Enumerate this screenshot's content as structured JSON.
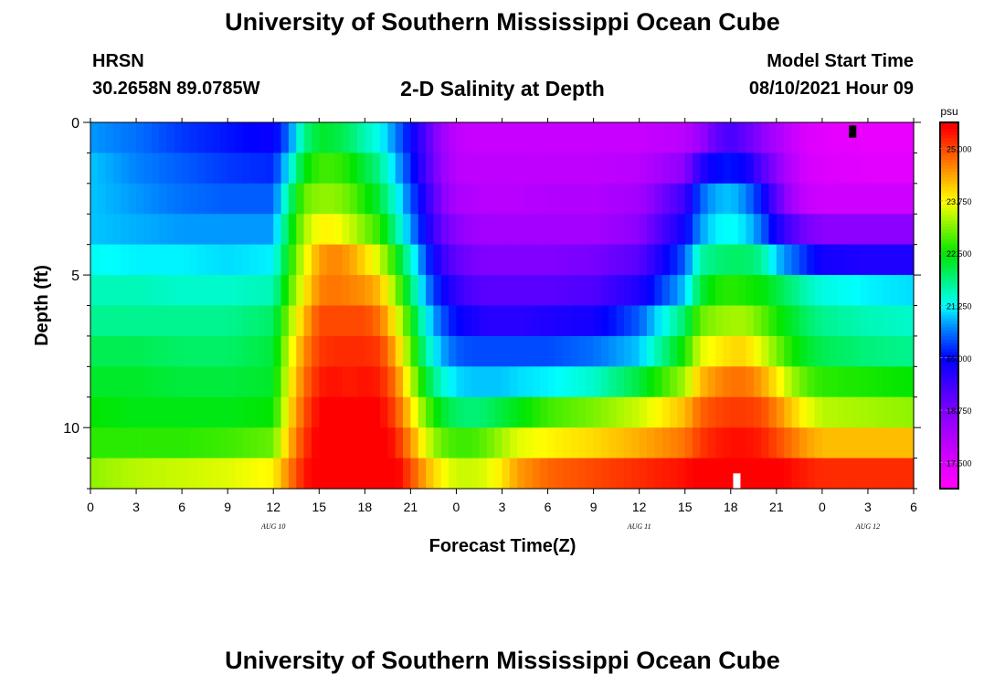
{
  "header": {
    "title": "University of Southern Mississippi Ocean Cube",
    "station": "HRSN",
    "coords": "30.2658N  89.0785W",
    "plot_title": "2-D Salinity at Depth",
    "model_label": "Model Start Time",
    "model_time": "08/10/2021 Hour 09"
  },
  "footer": {
    "title": "University of Southern Mississippi Ocean Cube"
  },
  "chart_data": {
    "type": "heatmap",
    "title": "2-D Salinity at Depth",
    "xlabel": "Forecast Time(Z)",
    "ylabel": "Depth (ft)",
    "xlim": [
      0,
      54
    ],
    "ylim": [
      0,
      12
    ],
    "y_ticks": [
      0,
      5,
      10
    ],
    "x_tick_labels": [
      "0",
      "3",
      "6",
      "9",
      "12",
      "15",
      "18",
      "21",
      "0",
      "3",
      "6",
      "9",
      "12",
      "15",
      "18",
      "21",
      "0",
      "3",
      "6"
    ],
    "date_labels": [
      {
        "hour": 12,
        "label": "AUG 10"
      },
      {
        "hour": 36,
        "label": "AUG 11"
      },
      {
        "hour": 51,
        "label": "AUG 12"
      }
    ],
    "depth_bins_ft": [
      0.5,
      1.5,
      2.5,
      3.5,
      4.5,
      5.5,
      6.5,
      7.5,
      8.5,
      9.5,
      10.5,
      11.5
    ],
    "profile_hours": [
      0,
      3,
      6,
      9,
      12,
      13,
      14,
      15,
      16,
      17,
      18,
      19,
      20,
      21,
      22,
      23,
      24,
      25,
      26,
      27,
      28,
      30,
      33,
      36,
      39,
      40,
      41,
      42,
      43,
      44,
      45,
      46,
      47,
      48,
      51,
      54
    ],
    "salinity_psu": [
      [
        20.8,
        20.6,
        20.3,
        20.1,
        19.9,
        20.6,
        21.8,
        22.3,
        22.2,
        22.0,
        21.6,
        21.3,
        20.7,
        20.0,
        19.2,
        18.4,
        17.9,
        17.8,
        17.8,
        17.8,
        17.8,
        17.8,
        17.8,
        17.8,
        18.0,
        18.4,
        19.0,
        19.3,
        19.0,
        18.6,
        18.2,
        17.8,
        17.5,
        17.4,
        17.3,
        17.3
      ],
      [
        21.0,
        20.7,
        20.5,
        20.3,
        20.2,
        21.2,
        22.4,
        22.8,
        22.8,
        22.6,
        22.2,
        21.8,
        21.0,
        20.2,
        19.3,
        18.5,
        18.0,
        17.9,
        17.9,
        17.9,
        17.9,
        17.9,
        17.9,
        18.0,
        18.6,
        19.6,
        20.0,
        20.1,
        19.9,
        19.2,
        18.6,
        18.0,
        17.6,
        17.5,
        17.4,
        17.4
      ],
      [
        21.0,
        20.8,
        20.6,
        20.5,
        20.5,
        21.8,
        23.0,
        23.2,
        23.2,
        23.0,
        22.6,
        22.2,
        21.4,
        20.5,
        19.6,
        18.7,
        18.2,
        18.1,
        18.0,
        18.0,
        18.0,
        18.1,
        18.1,
        18.3,
        19.4,
        20.5,
        20.9,
        21.0,
        20.7,
        20.1,
        19.1,
        18.3,
        17.8,
        17.7,
        17.7,
        17.7
      ],
      [
        21.0,
        20.9,
        20.8,
        20.8,
        20.8,
        22.2,
        23.3,
        23.8,
        23.8,
        23.5,
        23.1,
        22.7,
        21.8,
        20.8,
        19.9,
        19.0,
        18.6,
        18.4,
        18.3,
        18.3,
        18.3,
        18.3,
        18.3,
        18.6,
        19.9,
        20.8,
        21.2,
        21.3,
        21.1,
        20.6,
        19.8,
        19.2,
        18.8,
        18.6,
        18.6,
        18.6
      ],
      [
        21.3,
        21.2,
        21.2,
        21.1,
        21.2,
        22.5,
        23.6,
        24.4,
        24.6,
        24.4,
        24.0,
        23.5,
        22.6,
        21.5,
        20.4,
        19.5,
        19.0,
        18.8,
        18.7,
        18.7,
        18.7,
        18.7,
        18.8,
        19.1,
        20.5,
        21.7,
        21.9,
        22.0,
        22.0,
        21.8,
        21.0,
        20.6,
        20.2,
        19.8,
        19.7,
        19.7
      ],
      [
        21.6,
        21.6,
        21.5,
        21.5,
        21.6,
        22.8,
        23.8,
        24.6,
        24.7,
        24.6,
        24.5,
        24.2,
        23.2,
        22.0,
        20.8,
        20.0,
        19.5,
        19.2,
        19.1,
        19.1,
        19.1,
        19.1,
        19.2,
        19.7,
        21.0,
        22.2,
        22.6,
        22.7,
        22.6,
        22.5,
        22.2,
        21.9,
        21.6,
        21.4,
        21.2,
        21.1
      ],
      [
        21.8,
        21.8,
        21.8,
        21.8,
        22.0,
        23.2,
        24.2,
        25.0,
        25.0,
        25.0,
        25.0,
        24.7,
        23.8,
        22.6,
        21.3,
        20.5,
        20.0,
        19.8,
        19.6,
        19.6,
        19.6,
        19.7,
        19.8,
        20.5,
        22.0,
        23.0,
        23.2,
        23.3,
        23.3,
        23.0,
        22.6,
        22.3,
        22.0,
        21.8,
        21.6,
        21.5
      ],
      [
        22.1,
        22.1,
        22.0,
        22.0,
        22.2,
        23.5,
        24.5,
        25.1,
        25.2,
        25.2,
        25.2,
        25.1,
        24.3,
        23.0,
        21.7,
        20.9,
        20.5,
        20.4,
        20.4,
        20.4,
        20.4,
        20.4,
        20.6,
        21.0,
        22.6,
        23.6,
        23.8,
        24.0,
        24.0,
        23.6,
        23.1,
        22.6,
        22.3,
        22.1,
        21.9,
        21.8
      ],
      [
        22.3,
        22.3,
        22.2,
        22.2,
        22.3,
        23.7,
        24.7,
        25.3,
        25.4,
        25.3,
        25.4,
        25.3,
        24.7,
        23.5,
        22.3,
        21.5,
        21.1,
        21.0,
        21.0,
        21.0,
        21.1,
        21.2,
        21.5,
        22.2,
        23.3,
        24.2,
        24.5,
        24.7,
        24.7,
        24.4,
        23.9,
        23.3,
        22.9,
        22.7,
        22.6,
        22.5
      ],
      [
        22.5,
        22.4,
        22.4,
        22.4,
        22.5,
        23.9,
        24.9,
        25.5,
        25.5,
        25.5,
        25.5,
        25.5,
        25.0,
        24.0,
        23.0,
        22.3,
        22.0,
        21.9,
        22.0,
        22.2,
        22.4,
        22.8,
        23.1,
        23.5,
        24.2,
        24.8,
        25.0,
        25.1,
        25.1,
        25.0,
        24.6,
        24.1,
        23.7,
        23.4,
        23.3,
        23.2
      ],
      [
        22.7,
        22.7,
        22.7,
        22.8,
        23.0,
        24.2,
        25.1,
        25.6,
        25.7,
        25.7,
        25.7,
        25.7,
        25.3,
        24.5,
        23.6,
        23.0,
        22.8,
        22.8,
        23.0,
        23.3,
        23.6,
        23.8,
        24.0,
        24.3,
        24.7,
        25.1,
        25.3,
        25.4,
        25.4,
        25.3,
        25.0,
        24.7,
        24.4,
        24.2,
        24.2,
        24.2
      ],
      [
        23.2,
        23.4,
        23.5,
        23.6,
        23.8,
        24.6,
        25.3,
        25.7,
        25.8,
        25.8,
        25.8,
        25.8,
        25.6,
        25.0,
        24.3,
        23.8,
        23.5,
        23.5,
        23.6,
        23.9,
        24.4,
        24.8,
        25.0,
        25.2,
        25.4,
        25.6,
        25.7,
        25.8,
        25.8,
        25.7,
        25.6,
        25.4,
        25.3,
        25.2,
        25.2,
        25.2
      ]
    ],
    "colorbar": {
      "unit": "psu",
      "range": [
        16.875,
        25.625
      ],
      "tick_labels": [
        "25.000",
        "23.750",
        "22.500",
        "21.250",
        "20.000",
        "18.750",
        "17.500"
      ],
      "tick_values": [
        25.0,
        23.75,
        22.5,
        21.25,
        20.0,
        18.75,
        17.5
      ]
    },
    "markers": [
      {
        "color": "#000000",
        "hour": 50,
        "depth_from": 0.1,
        "depth_to": 0.5
      },
      {
        "color": "#ffffff",
        "hour": 42.4,
        "depth_from": 11.5,
        "depth_to": 12.0
      }
    ]
  }
}
